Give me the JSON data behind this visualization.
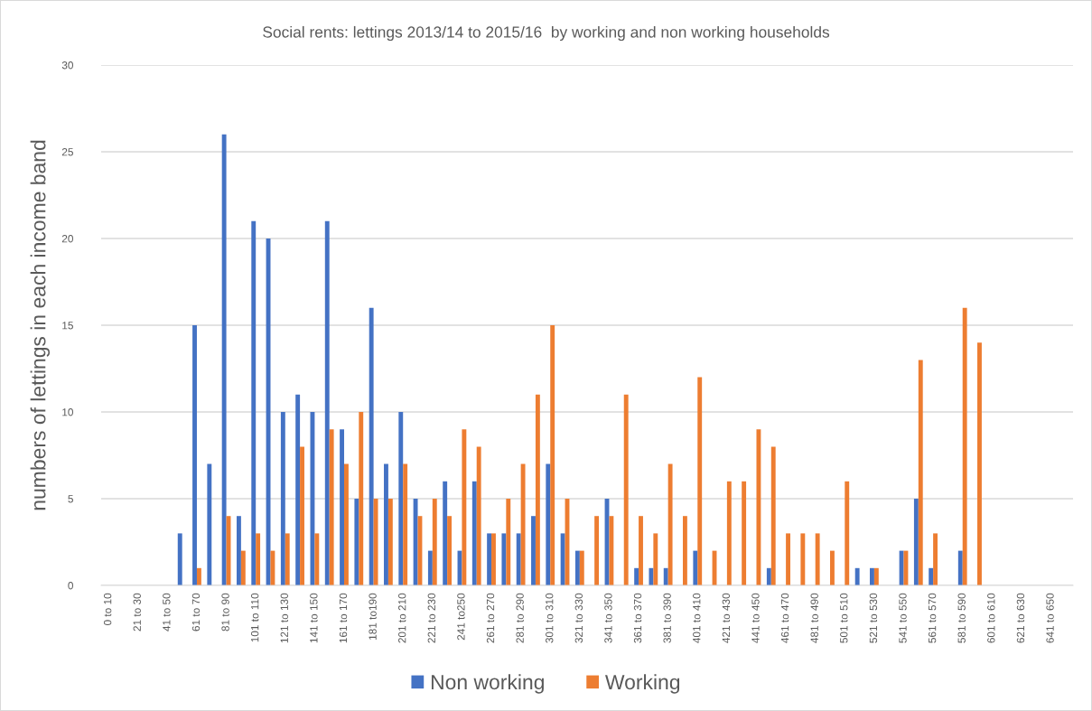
{
  "chart_data": {
    "type": "bar",
    "title": "Social rents: lettings 2013/14 to 2015/16  by working and non working households",
    "ylabel": "numbers of lettings in each income band",
    "categories": [
      "0 to 10",
      null,
      "21 to 30",
      null,
      "41 to 50",
      null,
      "61 to 70",
      null,
      "81 to 90",
      null,
      "101 to 110",
      null,
      "121 to 130",
      null,
      "141 to 150",
      null,
      "161 to 170",
      null,
      "181 to190",
      null,
      "201 to 210",
      null,
      "221 to 230",
      null,
      "241 to250",
      null,
      "261 to 270",
      null,
      "281 to 290",
      null,
      "301 to 310",
      null,
      "321 to 330",
      null,
      "341 to 350",
      null,
      "361 to 370",
      null,
      "381 to 390",
      null,
      "401 to 410",
      null,
      "421 to 430",
      null,
      "441 to 450",
      null,
      "461 to 470",
      null,
      "481 to 490",
      null,
      "501 to 510",
      null,
      "521 to 530",
      null,
      "541 to 550",
      null,
      "561 to 570",
      null,
      "581 to 590",
      null,
      "601 to 610",
      null,
      "621 to 630",
      null,
      "641 to 650",
      null
    ],
    "series": [
      {
        "name": "Non working",
        "color": "#4472c4",
        "values": [
          null,
          null,
          null,
          null,
          null,
          3,
          15,
          7,
          26,
          4,
          21,
          20,
          10,
          11,
          10,
          21,
          9,
          5,
          16,
          7,
          10,
          5,
          2,
          6,
          2,
          6,
          3,
          3,
          3,
          4,
          7,
          3,
          2,
          null,
          5,
          null,
          1,
          1,
          1,
          null,
          2,
          null,
          null,
          null,
          null,
          1,
          null,
          null,
          null,
          null,
          null,
          1,
          1,
          null,
          2,
          5,
          1,
          null,
          2,
          null,
          null,
          null,
          null,
          null,
          null,
          null
        ]
      },
      {
        "name": "Working",
        "color": "#ed7d31",
        "values": [
          null,
          null,
          null,
          null,
          null,
          null,
          1,
          null,
          4,
          2,
          3,
          2,
          3,
          8,
          3,
          9,
          7,
          10,
          5,
          5,
          7,
          4,
          5,
          4,
          9,
          8,
          3,
          5,
          7,
          11,
          15,
          5,
          2,
          4,
          4,
          11,
          4,
          3,
          7,
          4,
          12,
          2,
          6,
          6,
          9,
          8,
          3,
          3,
          3,
          2,
          6,
          null,
          1,
          null,
          2,
          13,
          3,
          null,
          16,
          14,
          null,
          null,
          null,
          null,
          null,
          null
        ]
      }
    ],
    "ylim": [
      0,
      30
    ],
    "yticks": [
      0,
      5,
      10,
      15,
      20,
      25,
      30
    ],
    "grid": "y",
    "legend": "bottom"
  }
}
